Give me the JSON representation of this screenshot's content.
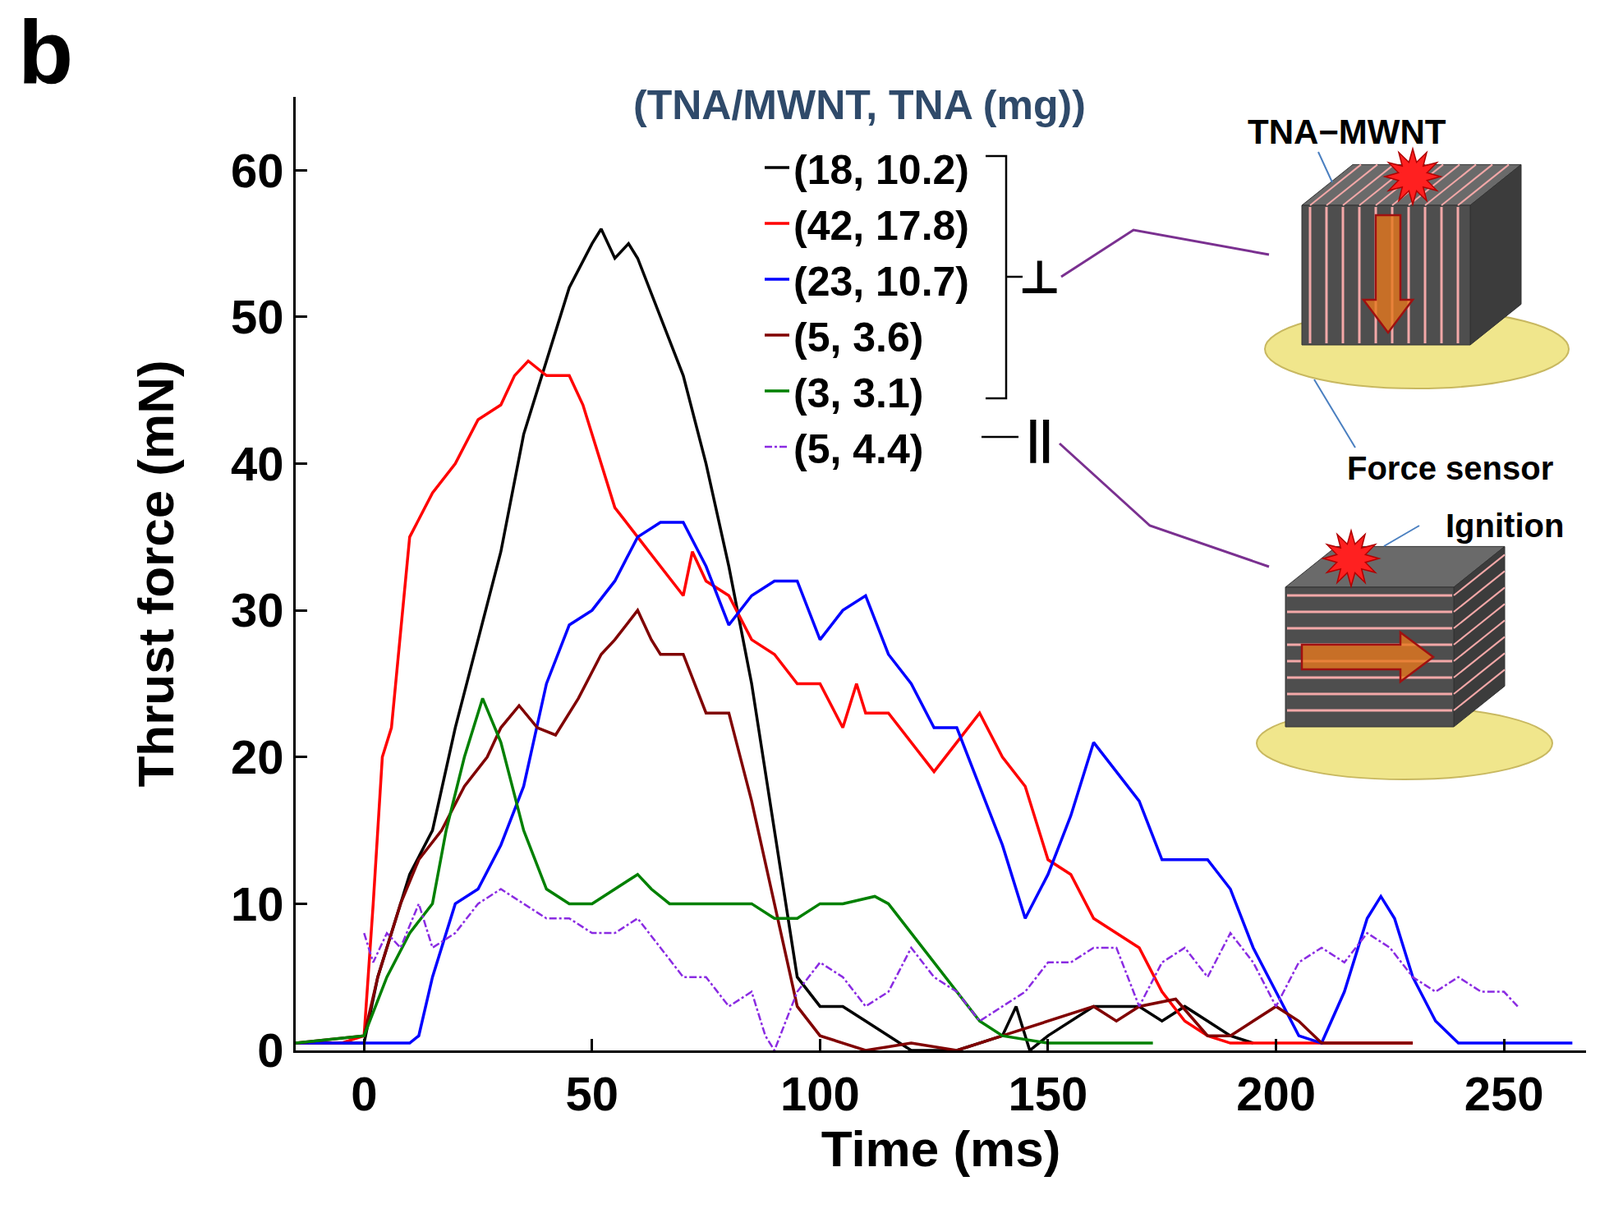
{
  "chart_data": {
    "type": "line",
    "panel_label": "b",
    "legend_title": "(TNA/MWNT, TNA (mg))",
    "xlabel": "Time (ms)",
    "ylabel": "Thrust force (mN)",
    "xlim": [
      -15,
      268
    ],
    "ylim": [
      0,
      65
    ],
    "xticks": [
      0,
      50,
      100,
      150,
      200,
      250
    ],
    "yticks": [
      0,
      10,
      20,
      30,
      40,
      50,
      60
    ],
    "grid": false,
    "legend": "top",
    "annotations": [
      "⊥",
      "||",
      "TNA−MWNT",
      "Force sensor",
      "Ignition"
    ],
    "series": [
      {
        "name": "(18, 10.2)",
        "color": "#000000",
        "line_style": "solid",
        "x": [
          -15,
          -5,
          0,
          3,
          10,
          15,
          20,
          25,
          30,
          35,
          40,
          45,
          50,
          52,
          55,
          58,
          60,
          65,
          70,
          75,
          80,
          85,
          90,
          95,
          100,
          105,
          110,
          115,
          120,
          130,
          140,
          143,
          146,
          150,
          160,
          165,
          170,
          175,
          180,
          185,
          190,
          195
        ],
        "values": [
          0.5,
          0.5,
          0.5,
          5,
          12,
          15,
          22,
          28,
          34,
          42,
          47,
          52,
          55,
          56,
          54,
          55,
          54,
          50,
          46,
          40,
          33,
          25,
          15,
          5,
          3,
          3,
          2,
          1,
          0,
          0,
          1,
          3,
          0,
          1,
          3,
          3,
          3,
          2,
          3,
          2,
          1,
          0.5
        ]
      },
      {
        "name": "(42, 17.8)",
        "color": "#ff0000",
        "line_style": "solid",
        "x": [
          -15,
          -5,
          0,
          2,
          4,
          6,
          10,
          15,
          20,
          25,
          30,
          33,
          36,
          40,
          45,
          48,
          50,
          55,
          60,
          65,
          70,
          72,
          75,
          80,
          85,
          90,
          95,
          100,
          105,
          108,
          110,
          115,
          120,
          125,
          130,
          135,
          140,
          145,
          150,
          155,
          160,
          165,
          170,
          175,
          180,
          185,
          190,
          200,
          230
        ],
        "values": [
          0.5,
          0.5,
          1,
          10,
          20,
          22,
          35,
          38,
          40,
          43,
          44,
          46,
          47,
          46,
          46,
          44,
          42,
          37,
          35,
          33,
          31,
          34,
          32,
          31,
          28,
          27,
          25,
          25,
          22,
          25,
          23,
          23,
          21,
          19,
          21,
          23,
          20,
          18,
          13,
          12,
          9,
          8,
          7,
          4,
          2,
          1,
          0.5,
          0.5,
          0.5
        ]
      },
      {
        "name": "(23, 10.7)",
        "color": "#0000ff",
        "line_style": "solid",
        "x": [
          -15,
          10,
          12,
          15,
          20,
          25,
          30,
          35,
          40,
          45,
          50,
          55,
          60,
          65,
          70,
          75,
          80,
          85,
          90,
          95,
          100,
          105,
          110,
          115,
          120,
          125,
          130,
          135,
          140,
          145,
          150,
          155,
          160,
          165,
          170,
          175,
          180,
          185,
          190,
          195,
          200,
          205,
          210,
          215,
          220,
          223,
          226,
          230,
          235,
          240,
          265
        ],
        "values": [
          0.5,
          0.5,
          1,
          5,
          10,
          11,
          14,
          18,
          25,
          29,
          30,
          32,
          35,
          36,
          36,
          33,
          29,
          31,
          32,
          32,
          28,
          30,
          31,
          27,
          25,
          22,
          22,
          18,
          14,
          9,
          12,
          16,
          21,
          19,
          17,
          13,
          13,
          13,
          11,
          7,
          4,
          1,
          0.5,
          4,
          9,
          10.5,
          9,
          5,
          2,
          0.5,
          0.5
        ]
      },
      {
        "name": "(5, 3.6)",
        "color": "#800000",
        "line_style": "solid",
        "x": [
          -15,
          0,
          3,
          8,
          12,
          17,
          22,
          27,
          30,
          34,
          38,
          42,
          47,
          52,
          55,
          60,
          63,
          65,
          70,
          75,
          80,
          85,
          90,
          95,
          100,
          110,
          120,
          130,
          140,
          150,
          160,
          165,
          170,
          178,
          185,
          190,
          195,
          200,
          205,
          210,
          230
        ],
        "values": [
          0.5,
          1,
          5,
          10,
          13,
          15,
          18,
          20,
          22,
          23.5,
          22,
          21.5,
          24,
          27,
          28,
          30,
          28,
          27,
          27,
          23,
          23,
          17,
          10,
          3,
          1,
          0,
          0.5,
          0,
          1,
          2,
          3,
          2,
          3,
          3.5,
          1,
          1,
          2,
          3,
          2,
          0.5,
          0.5
        ]
      },
      {
        "name": "(3, 3.1)",
        "color": "#008000",
        "line_style": "solid",
        "x": [
          -15,
          0,
          5,
          10,
          15,
          18,
          22,
          26,
          30,
          35,
          40,
          45,
          50,
          55,
          60,
          63,
          67,
          75,
          80,
          85,
          90,
          95,
          100,
          105,
          112,
          115,
          120,
          125,
          130,
          135,
          140,
          150,
          173
        ],
        "values": [
          0.5,
          1,
          5,
          8,
          10,
          15,
          20,
          24,
          21,
          15,
          11,
          10,
          10,
          11,
          12,
          11,
          10,
          10,
          10,
          10,
          9,
          9,
          10,
          10,
          10.5,
          10,
          8,
          6,
          4,
          2,
          1,
          0.5,
          0.5
        ]
      },
      {
        "name": "(5, 4.4)",
        "color": "#8a2be2",
        "line_style": "dashdot",
        "x": [
          0,
          2,
          5,
          8,
          12,
          15,
          20,
          25,
          30,
          35,
          40,
          45,
          50,
          55,
          60,
          65,
          70,
          75,
          80,
          85,
          88,
          90,
          95,
          100,
          105,
          110,
          115,
          120,
          125,
          130,
          135,
          140,
          145,
          150,
          155,
          160,
          165,
          170,
          175,
          180,
          185,
          190,
          195,
          200,
          205,
          210,
          215,
          220,
          225,
          230,
          235,
          240,
          245,
          250,
          253
        ],
        "values": [
          8,
          6,
          8,
          7,
          10,
          7,
          8,
          10,
          11,
          10,
          9,
          9,
          8,
          8,
          9,
          7,
          5,
          5,
          3,
          4,
          1,
          0,
          4,
          6,
          5,
          3,
          4,
          7,
          5,
          4,
          2,
          3,
          4,
          6,
          6,
          7,
          7,
          3,
          6,
          7,
          5,
          8,
          6,
          3,
          6,
          7,
          6,
          8,
          7,
          5,
          4,
          5,
          4,
          4,
          3
        ]
      }
    ]
  }
}
